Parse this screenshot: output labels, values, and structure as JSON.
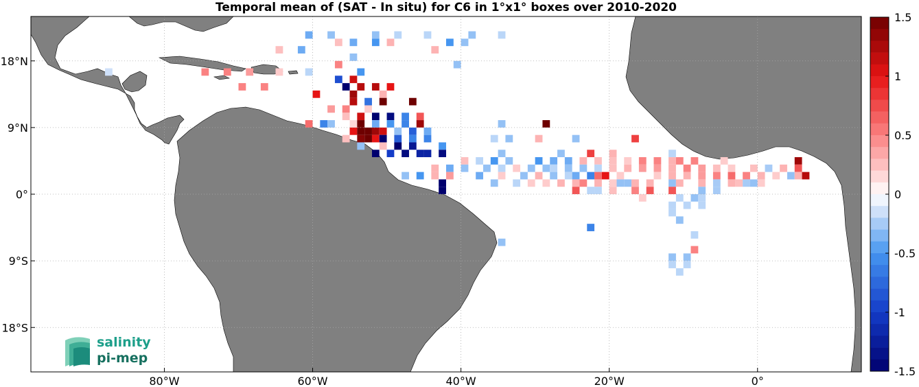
{
  "title": "Temporal mean of (SAT - In situ) for C6 in 1°x1° boxes over 2010-2020",
  "map": {
    "lon_range": [
      -98,
      14
    ],
    "lat_range": [
      -24,
      24
    ],
    "lon_ticks": [
      {
        "value": -80,
        "label": "80°W"
      },
      {
        "value": -60,
        "label": "60°W"
      },
      {
        "value": -40,
        "label": "40°W"
      },
      {
        "value": -20,
        "label": "20°W"
      },
      {
        "value": 0,
        "label": "0°"
      }
    ],
    "lat_ticks": [
      {
        "value": 18,
        "label": "18°N"
      },
      {
        "value": 9,
        "label": "9°N"
      },
      {
        "value": 0,
        "label": "0°"
      },
      {
        "value": -9,
        "label": "9°S"
      },
      {
        "value": -18,
        "label": "18°S"
      }
    ],
    "grid": true,
    "land_color": "#808080"
  },
  "colorbar": {
    "range": [
      -1.5,
      1.5
    ],
    "ticks": [
      "1.5",
      "1",
      "0.5",
      "0",
      "-0.5",
      "-1",
      "-1.5"
    ],
    "colormap": "blue-white-red",
    "position": "right"
  },
  "chart_data": {
    "type": "heatmap",
    "cell_size_deg": 1,
    "cells": [
      [
        -61,
        21,
        -0.4
      ],
      [
        -58,
        21,
        -0.3
      ],
      [
        -52,
        21,
        -0.3
      ],
      [
        -49,
        21,
        -0.2
      ],
      [
        -45,
        21,
        -0.2
      ],
      [
        -39,
        21,
        -0.3
      ],
      [
        -35,
        21,
        -0.2
      ],
      [
        -57,
        20,
        0.25
      ],
      [
        -55,
        20,
        -0.4
      ],
      [
        -52,
        20,
        -0.5
      ],
      [
        -50,
        20,
        0.3
      ],
      [
        -42,
        20,
        -0.5
      ],
      [
        -40,
        20,
        -0.3
      ],
      [
        -65,
        19,
        0.25
      ],
      [
        -62,
        19,
        -0.4
      ],
      [
        -44,
        19,
        0.3
      ],
      [
        -55,
        18,
        -0.3
      ],
      [
        -57,
        17,
        0.5
      ],
      [
        -41,
        17,
        -0.3
      ],
      [
        -54,
        16,
        -0.5
      ],
      [
        -88,
        16,
        -0.15
      ],
      [
        -75,
        16,
        0.5
      ],
      [
        -72,
        16,
        0.5
      ],
      [
        -69,
        16,
        0.4
      ],
      [
        -65,
        16,
        0.2
      ],
      [
        -61,
        16,
        -0.2
      ],
      [
        -55,
        15,
        1.1
      ],
      [
        -57,
        15,
        -0.9
      ],
      [
        -70,
        14,
        0.5
      ],
      [
        -67,
        14,
        0.5
      ],
      [
        -56,
        14,
        -1.5
      ],
      [
        -54,
        14,
        1.2
      ],
      [
        -52,
        14,
        1.2
      ],
      [
        -50,
        14,
        1.0
      ],
      [
        -55,
        13,
        1.3
      ],
      [
        -60,
        13,
        1.0
      ],
      [
        -51,
        13,
        0.3
      ],
      [
        -55,
        12,
        1.2
      ],
      [
        -53,
        12,
        -0.7
      ],
      [
        -51,
        12,
        1.5
      ],
      [
        -47,
        12,
        1.5
      ],
      [
        -56,
        11,
        0.5
      ],
      [
        -58,
        11,
        0.4
      ],
      [
        -53,
        11,
        0.2
      ],
      [
        -56,
        10,
        0.25
      ],
      [
        -54,
        10,
        1.1
      ],
      [
        -52,
        10,
        -1.5
      ],
      [
        -50,
        10,
        -1.4
      ],
      [
        -48,
        10,
        -0.6
      ],
      [
        -46,
        10,
        0.7
      ],
      [
        -61,
        9,
        0.6
      ],
      [
        -59,
        9,
        -0.6
      ],
      [
        -58,
        9,
        -0.3
      ],
      [
        -55,
        9,
        0.15
      ],
      [
        -54,
        9,
        1.5
      ],
      [
        -52,
        9,
        -0.4
      ],
      [
        -50,
        9,
        -0.5
      ],
      [
        -48,
        9,
        -0.6
      ],
      [
        -46,
        9,
        1.3
      ],
      [
        -35,
        9,
        -0.3
      ],
      [
        -29,
        9,
        1.5
      ],
      [
        -55,
        8,
        1.0
      ],
      [
        -54,
        8,
        1.5
      ],
      [
        -53,
        8,
        1.5
      ],
      [
        -52,
        8,
        1.3
      ],
      [
        -51,
        8,
        1.1
      ],
      [
        -49,
        8,
        -0.3
      ],
      [
        -47,
        8,
        -0.8
      ],
      [
        -45,
        8,
        -0.4
      ],
      [
        -56,
        7,
        0.25
      ],
      [
        -54,
        7,
        1.4
      ],
      [
        -53,
        7,
        1.5
      ],
      [
        -52,
        7,
        1.0
      ],
      [
        -51,
        7,
        -1.5
      ],
      [
        -49,
        7,
        -0.8
      ],
      [
        -47,
        7,
        -0.6
      ],
      [
        -45,
        7,
        -0.6
      ],
      [
        -36,
        7,
        -0.2
      ],
      [
        -34,
        7,
        -0.3
      ],
      [
        -30,
        7,
        0.3
      ],
      [
        -25,
        7,
        -0.3
      ],
      [
        -17,
        7,
        0.8
      ],
      [
        -54,
        6,
        -0.3
      ],
      [
        -51,
        6,
        0.25
      ],
      [
        -49,
        6,
        -1.5
      ],
      [
        -47,
        6,
        -1.3
      ],
      [
        -43,
        6,
        -0.5
      ],
      [
        -52,
        5,
        -1.5
      ],
      [
        -50,
        5,
        -1.0
      ],
      [
        -48,
        5,
        -1.4
      ],
      [
        -46,
        5,
        -1.2
      ],
      [
        -45,
        5,
        -1.2
      ],
      [
        -43,
        5,
        -1.4
      ],
      [
        -35,
        5,
        -0.3
      ],
      [
        -27,
        5,
        -0.3
      ],
      [
        -23,
        5,
        0.8
      ],
      [
        -20,
        5,
        0.3
      ],
      [
        -12,
        5,
        -0.2
      ],
      [
        -40,
        4,
        0.25
      ],
      [
        -38,
        4,
        -0.2
      ],
      [
        -36,
        4,
        -0.5
      ],
      [
        -34,
        4,
        -0.3
      ],
      [
        -30,
        4,
        -0.5
      ],
      [
        -28,
        4,
        -0.4
      ],
      [
        -26,
        4,
        -0.4
      ],
      [
        -24,
        4,
        0.3
      ],
      [
        -22,
        4,
        0.25
      ],
      [
        -20,
        4,
        0.25
      ],
      [
        -18,
        4,
        0.2
      ],
      [
        -16,
        4,
        0.5
      ],
      [
        -14,
        4,
        0.5
      ],
      [
        -12,
        4,
        0.3
      ],
      [
        -11,
        4,
        0.5
      ],
      [
        -9,
        4,
        0.5
      ],
      [
        -5,
        4,
        0.2
      ],
      [
        5,
        4,
        1.3
      ],
      [
        -44,
        3,
        0.3
      ],
      [
        -42,
        3,
        -0.4
      ],
      [
        -40,
        3,
        -0.3
      ],
      [
        -37,
        3,
        -0.3
      ],
      [
        -35,
        3,
        -0.2
      ],
      [
        -33,
        3,
        0.2
      ],
      [
        -31,
        3,
        -0.3
      ],
      [
        -29,
        3,
        -0.3
      ],
      [
        -28,
        3,
        -0.2
      ],
      [
        -26,
        3,
        -0.3
      ],
      [
        -24,
        3,
        -0.3
      ],
      [
        -22,
        3,
        -0.2
      ],
      [
        -20,
        3,
        0.25
      ],
      [
        -18,
        3,
        0.3
      ],
      [
        -16,
        3,
        0.4
      ],
      [
        -14,
        3,
        0.4
      ],
      [
        -12,
        3,
        0.3
      ],
      [
        -10,
        3,
        0.5
      ],
      [
        -8,
        3,
        0.4
      ],
      [
        -6,
        3,
        0.25
      ],
      [
        -4,
        3,
        0.2
      ],
      [
        -1,
        3,
        0.25
      ],
      [
        1,
        3,
        -0.25
      ],
      [
        3,
        3,
        0.3
      ],
      [
        5,
        3,
        0.7
      ],
      [
        -48,
        2,
        -0.3
      ],
      [
        -46,
        2,
        -0.5
      ],
      [
        -44,
        2,
        0.3
      ],
      [
        -42,
        2,
        0.4
      ],
      [
        -38,
        2,
        -0.4
      ],
      [
        -35,
        2,
        0.2
      ],
      [
        -32,
        2,
        -0.3
      ],
      [
        -30,
        2,
        0.3
      ],
      [
        -28,
        2,
        -0.3
      ],
      [
        -26,
        2,
        -0.2
      ],
      [
        -25,
        2,
        -0.4
      ],
      [
        -23,
        2,
        -0.6
      ],
      [
        -22,
        2,
        0.6
      ],
      [
        -21,
        2,
        1.0
      ],
      [
        -19,
        2,
        0.2
      ],
      [
        -14,
        2,
        0.2
      ],
      [
        -12,
        2,
        0.3
      ],
      [
        -10,
        2,
        0.3
      ],
      [
        -8,
        2,
        0.4
      ],
      [
        -6,
        2,
        0.5
      ],
      [
        -4,
        2,
        0.6
      ],
      [
        -2,
        2,
        0.5
      ],
      [
        0,
        2,
        0.3
      ],
      [
        2,
        2,
        0.2
      ],
      [
        4,
        2,
        -0.3
      ],
      [
        5,
        2,
        0.3
      ],
      [
        6,
        2,
        1.2
      ],
      [
        -43,
        1,
        -1.5
      ],
      [
        -36,
        1,
        -0.3
      ],
      [
        -33,
        1,
        -0.2
      ],
      [
        -31,
        1,
        0.2
      ],
      [
        -29,
        1,
        0.2
      ],
      [
        -27,
        1,
        0.3
      ],
      [
        -25,
        1,
        0.3
      ],
      [
        -24,
        1,
        0.5
      ],
      [
        -22,
        1,
        0.3
      ],
      [
        -20,
        1,
        0.2
      ],
      [
        -19,
        1,
        -0.3
      ],
      [
        -18,
        1,
        -0.3
      ],
      [
        -17,
        1,
        0.3
      ],
      [
        -15,
        1,
        0.3
      ],
      [
        -12,
        1,
        -0.3
      ],
      [
        -11,
        1,
        0.3
      ],
      [
        -8,
        1,
        0.3
      ],
      [
        -6,
        1,
        -0.25
      ],
      [
        -4,
        1,
        0.3
      ],
      [
        -3,
        1,
        0.25
      ],
      [
        -2,
        1,
        -0.25
      ],
      [
        -1,
        1,
        -0.3
      ],
      [
        0,
        1,
        0.2
      ],
      [
        -43,
        0,
        -1.5
      ],
      [
        -25,
        0,
        0.7
      ],
      [
        -23,
        0,
        -0.2
      ],
      [
        -22,
        0,
        -0.2
      ],
      [
        -20,
        0,
        0.25
      ],
      [
        -17,
        0,
        0.5
      ],
      [
        -15,
        0,
        0.7
      ],
      [
        -12,
        0,
        0.7
      ],
      [
        -8,
        0,
        -0.3
      ],
      [
        -6,
        0,
        -0.25
      ],
      [
        -16,
        -1,
        0.2
      ],
      [
        -11,
        -1,
        -0.2
      ],
      [
        -9,
        -1,
        -0.3
      ],
      [
        -8,
        -1,
        -0.2
      ],
      [
        -12,
        -2,
        -0.2
      ],
      [
        -10,
        -2,
        -0.2
      ],
      [
        -8,
        -2,
        -0.2
      ],
      [
        -12,
        -3,
        -0.2
      ],
      [
        -11,
        -4,
        -0.3
      ],
      [
        -23,
        -5,
        -0.6
      ],
      [
        -9,
        -6,
        -0.2
      ],
      [
        -35,
        -7,
        -0.3
      ],
      [
        -12,
        -9,
        -0.3
      ],
      [
        -10,
        -9,
        -0.3
      ],
      [
        -9,
        -8,
        0.5
      ],
      [
        -12,
        -10,
        -0.2
      ],
      [
        -10,
        -10,
        -0.2
      ],
      [
        -11,
        -11,
        -0.2
      ]
    ]
  },
  "logo": {
    "line1": "salinity",
    "line2": "pi-mep"
  }
}
